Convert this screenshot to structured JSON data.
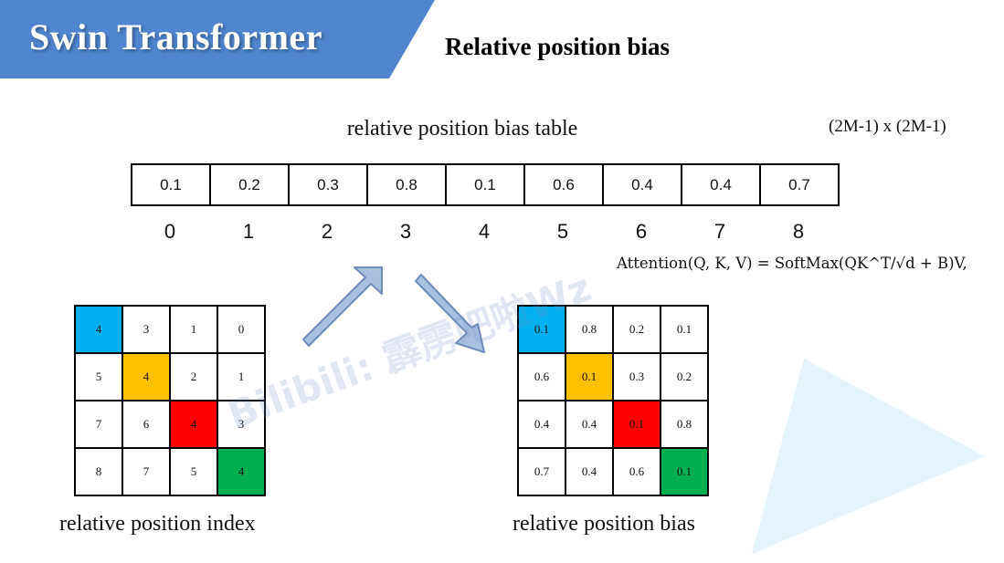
{
  "header": {
    "title": "Swin Transformer",
    "subtitle": "Relative position bias",
    "banner_color": "#4f86cf"
  },
  "table": {
    "title": "relative position bias table",
    "dims": "(2M-1) x (2M-1)",
    "values": [
      "0.1",
      "0.2",
      "0.3",
      "0.8",
      "0.1",
      "0.6",
      "0.4",
      "0.4",
      "0.7"
    ],
    "indices": [
      "0",
      "1",
      "2",
      "3",
      "4",
      "5",
      "6",
      "7",
      "8"
    ]
  },
  "formula": {
    "text": "Attention(Q, K, V) = SoftMax(QK^T/√d + B)V,"
  },
  "index_grid": {
    "caption": "relative position index",
    "cells": [
      "4",
      "3",
      "1",
      "0",
      "5",
      "4",
      "2",
      "1",
      "7",
      "6",
      "4",
      "3",
      "8",
      "7",
      "5",
      "4"
    ]
  },
  "bias_grid": {
    "caption": "relative position bias",
    "cells": [
      "0.1",
      "0.8",
      "0.2",
      "0.1",
      "0.6",
      "0.1",
      "0.3",
      "0.2",
      "0.4",
      "0.4",
      "0.1",
      "0.8",
      "0.7",
      "0.4",
      "0.6",
      "0.1"
    ]
  },
  "highlight_colors": {
    "blue": "#00b0f0",
    "orange": "#ffc000",
    "red": "#ff0000",
    "green": "#00b050"
  },
  "watermark": "Bilibili: 霹雳吧啦Wz"
}
